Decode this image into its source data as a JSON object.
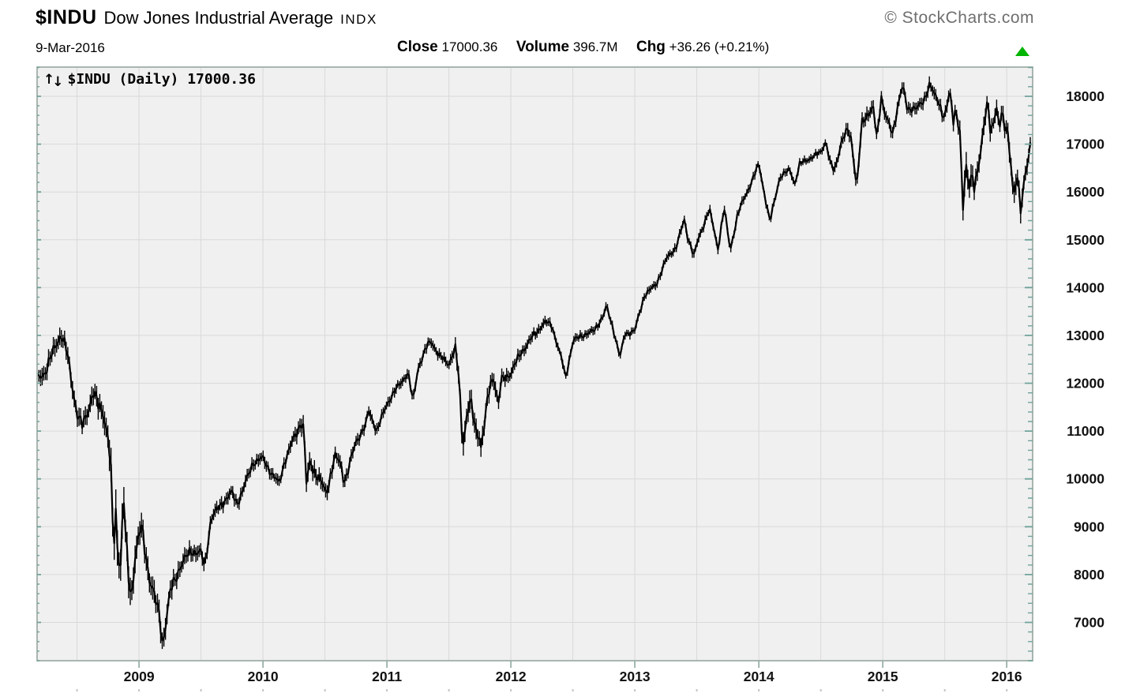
{
  "header": {
    "symbol": "$INDU",
    "name": "Dow Jones Industrial Average",
    "exchange": "INDX",
    "date": "9-Mar-2016",
    "close_label": "Close",
    "close_value": "17000.36",
    "volume_label": "Volume",
    "volume_value": "396.7M",
    "chg_label": "Chg",
    "chg_value": "+36.26 (+0.21%)",
    "copyright": "© StockCharts.com"
  },
  "overlay": {
    "up_arrow": "↑",
    "down_arrow": "↓",
    "label": "$INDU (Daily) 17000.36"
  },
  "colors": {
    "up_green": "#00b400",
    "plot_bg": "#f0f0f0",
    "grid": "#d9d9d9",
    "border": "#a9b6af",
    "tick_teal": "#6fa29a",
    "axis_tick_gray": "#8fa8a1",
    "dot_gray": "#c4c4c4",
    "series_black": "#000000",
    "label_color": "#111111",
    "copyright_gray": "#6e6e6e"
  },
  "chart_data": {
    "type": "line",
    "title": "$INDU (Daily) 17000.36",
    "xlabel": "",
    "ylabel": "",
    "grid": true,
    "legend_position": "none",
    "x_range": [
      2008.178,
      2016.209
    ],
    "y_range": [
      6200,
      18610
    ],
    "x_ticks": [
      2009,
      2010,
      2011,
      2012,
      2013,
      2014,
      2015,
      2016
    ],
    "y_ticks": [
      7000,
      8000,
      9000,
      10000,
      11000,
      12000,
      13000,
      14000,
      15000,
      16000,
      17000,
      18000
    ],
    "minor_y_tick_step": 200,
    "vertical_grid_step_years": 0.5,
    "series": [
      {
        "name": "$INDU daily close",
        "points": [
          [
            2008.18,
            12100
          ],
          [
            2008.25,
            12263
          ],
          [
            2008.33,
            12820
          ],
          [
            2008.37,
            13028
          ],
          [
            2008.42,
            12638
          ],
          [
            2008.5,
            11350
          ],
          [
            2008.54,
            11100
          ],
          [
            2008.58,
            11378
          ],
          [
            2008.63,
            11800
          ],
          [
            2008.67,
            11544
          ],
          [
            2008.71,
            11422
          ],
          [
            2008.75,
            10851
          ],
          [
            2008.77,
            10325
          ],
          [
            2008.795,
            8451
          ],
          [
            2008.81,
            9387
          ],
          [
            2008.83,
            8519
          ],
          [
            2008.85,
            8176
          ],
          [
            2008.875,
            9625
          ],
          [
            2008.91,
            7997
          ],
          [
            2008.94,
            7552
          ],
          [
            2008.97,
            8479
          ],
          [
            2009.0,
            8776
          ],
          [
            2009.015,
            9034
          ],
          [
            2009.08,
            8001
          ],
          [
            2009.17,
            7063
          ],
          [
            2009.19,
            6547
          ],
          [
            2009.25,
            7609
          ],
          [
            2009.33,
            8168
          ],
          [
            2009.42,
            8500
          ],
          [
            2009.5,
            8447
          ],
          [
            2009.53,
            8147
          ],
          [
            2009.58,
            9172
          ],
          [
            2009.67,
            9496
          ],
          [
            2009.75,
            9712
          ],
          [
            2009.79,
            9487
          ],
          [
            2009.83,
            9713
          ],
          [
            2009.92,
            10345
          ],
          [
            2010.0,
            10428
          ],
          [
            2010.08,
            10067
          ],
          [
            2010.13,
            9908
          ],
          [
            2010.17,
            10325
          ],
          [
            2010.25,
            10857
          ],
          [
            2010.31,
            11205
          ],
          [
            2010.33,
            11009
          ],
          [
            2010.35,
            9870
          ],
          [
            2010.38,
            10380
          ],
          [
            2010.42,
            10137
          ],
          [
            2010.5,
            9774
          ],
          [
            2010.51,
            9686
          ],
          [
            2010.58,
            10466
          ],
          [
            2010.63,
            10320
          ],
          [
            2010.65,
            9986
          ],
          [
            2010.67,
            10015
          ],
          [
            2010.75,
            10788
          ],
          [
            2010.83,
            11118
          ],
          [
            2010.85,
            11444
          ],
          [
            2010.92,
            11006
          ],
          [
            2011.0,
            11578
          ],
          [
            2011.08,
            11892
          ],
          [
            2011.17,
            12226
          ],
          [
            2011.21,
            11613
          ],
          [
            2011.25,
            12320
          ],
          [
            2011.33,
            12811
          ],
          [
            2011.36,
            12876
          ],
          [
            2011.42,
            12570
          ],
          [
            2011.5,
            12414
          ],
          [
            2011.55,
            12724
          ],
          [
            2011.58,
            12143
          ],
          [
            2011.61,
            10720
          ],
          [
            2011.65,
            11413
          ],
          [
            2011.67,
            11614
          ],
          [
            2011.72,
            10992
          ],
          [
            2011.75,
            10913
          ],
          [
            2011.76,
            10655
          ],
          [
            2011.83,
            11955
          ],
          [
            2011.86,
            12153
          ],
          [
            2011.9,
            11546
          ],
          [
            2011.92,
            12046
          ],
          [
            2012.0,
            12218
          ],
          [
            2012.08,
            12633
          ],
          [
            2012.17,
            12952
          ],
          [
            2012.25,
            13212
          ],
          [
            2012.28,
            13279
          ],
          [
            2012.33,
            13214
          ],
          [
            2012.42,
            12393
          ],
          [
            2012.44,
            12101
          ],
          [
            2012.5,
            12880
          ],
          [
            2012.58,
            13009
          ],
          [
            2012.67,
            13091
          ],
          [
            2012.75,
            13437
          ],
          [
            2012.77,
            13610
          ],
          [
            2012.83,
            13096
          ],
          [
            2012.88,
            12542
          ],
          [
            2012.92,
            13026
          ],
          [
            2013.0,
            13104
          ],
          [
            2013.08,
            13861
          ],
          [
            2013.17,
            14054
          ],
          [
            2013.25,
            14579
          ],
          [
            2013.33,
            14840
          ],
          [
            2013.4,
            15409
          ],
          [
            2013.42,
            15116
          ],
          [
            2013.48,
            14659
          ],
          [
            2013.5,
            14910
          ],
          [
            2013.58,
            15500
          ],
          [
            2013.6,
            15658
          ],
          [
            2013.67,
            14810
          ],
          [
            2013.72,
            15676
          ],
          [
            2013.75,
            15130
          ],
          [
            2013.77,
            14776
          ],
          [
            2013.83,
            15546
          ],
          [
            2013.92,
            16086
          ],
          [
            2014.0,
            16577
          ],
          [
            2014.09,
            15373
          ],
          [
            2014.17,
            16322
          ],
          [
            2014.25,
            16458
          ],
          [
            2014.29,
            16173
          ],
          [
            2014.33,
            16581
          ],
          [
            2014.42,
            16717
          ],
          [
            2014.5,
            16827
          ],
          [
            2014.54,
            17068
          ],
          [
            2014.58,
            16563
          ],
          [
            2014.61,
            16429
          ],
          [
            2014.67,
            17098
          ],
          [
            2014.72,
            17279
          ],
          [
            2014.75,
            17043
          ],
          [
            2014.79,
            16117
          ],
          [
            2014.83,
            17391
          ],
          [
            2014.92,
            17828
          ],
          [
            2014.955,
            17069
          ],
          [
            2014.99,
            18053
          ],
          [
            2015.0,
            17823
          ],
          [
            2015.04,
            17509
          ],
          [
            2015.08,
            17165
          ],
          [
            2015.15,
            18225
          ],
          [
            2015.17,
            18133
          ],
          [
            2015.2,
            17662
          ],
          [
            2015.25,
            17776
          ],
          [
            2015.33,
            17841
          ],
          [
            2015.38,
            18312
          ],
          [
            2015.42,
            18010
          ],
          [
            2015.49,
            17596
          ],
          [
            2015.5,
            17620
          ],
          [
            2015.54,
            18120
          ],
          [
            2015.57,
            17419
          ],
          [
            2015.58,
            17690
          ],
          [
            2015.62,
            17403
          ],
          [
            2015.648,
            15666
          ],
          [
            2015.67,
            16528
          ],
          [
            2015.69,
            16058
          ],
          [
            2015.72,
            16330
          ],
          [
            2015.735,
            16385
          ],
          [
            2015.74,
            16002
          ],
          [
            2015.75,
            16285
          ],
          [
            2015.79,
            16790
          ],
          [
            2015.83,
            17664
          ],
          [
            2015.85,
            17918
          ],
          [
            2015.87,
            17245
          ],
          [
            2015.92,
            17720
          ],
          [
            2015.94,
            17265
          ],
          [
            2015.96,
            17749
          ],
          [
            2015.98,
            17403
          ],
          [
            2016.0,
            17425
          ],
          [
            2016.02,
            16906
          ],
          [
            2016.04,
            16346
          ],
          [
            2016.055,
            15767
          ],
          [
            2016.07,
            16094
          ],
          [
            2016.08,
            16466
          ],
          [
            2016.1,
            16027
          ],
          [
            2016.115,
            15660
          ],
          [
            2016.13,
            15973
          ],
          [
            2016.15,
            16392
          ],
          [
            2016.17,
            16517
          ],
          [
            2016.19,
            17000.36
          ]
        ]
      }
    ],
    "daily_range_points": [
      [
        2008.18,
        260
      ],
      [
        2008.6,
        280
      ],
      [
        2008.74,
        380
      ],
      [
        2008.79,
        600
      ],
      [
        2008.88,
        520
      ],
      [
        2009.0,
        380
      ],
      [
        2009.19,
        340
      ],
      [
        2009.33,
        260
      ],
      [
        2009.6,
        200
      ],
      [
        2009.9,
        190
      ],
      [
        2010.2,
        170
      ],
      [
        2010.34,
        300
      ],
      [
        2010.5,
        230
      ],
      [
        2010.8,
        170
      ],
      [
        2011.1,
        150
      ],
      [
        2011.5,
        150
      ],
      [
        2011.62,
        360
      ],
      [
        2011.8,
        280
      ],
      [
        2012.0,
        190
      ],
      [
        2012.3,
        140
      ],
      [
        2012.6,
        130
      ],
      [
        2013.0,
        120
      ],
      [
        2013.5,
        140
      ],
      [
        2014.0,
        130
      ],
      [
        2014.5,
        110
      ],
      [
        2014.79,
        230
      ],
      [
        2015.0,
        190
      ],
      [
        2015.3,
        180
      ],
      [
        2015.6,
        200
      ],
      [
        2015.65,
        420
      ],
      [
        2015.75,
        300
      ],
      [
        2015.95,
        230
      ],
      [
        2016.05,
        340
      ],
      [
        2016.12,
        300
      ],
      [
        2016.19,
        220
      ]
    ]
  }
}
